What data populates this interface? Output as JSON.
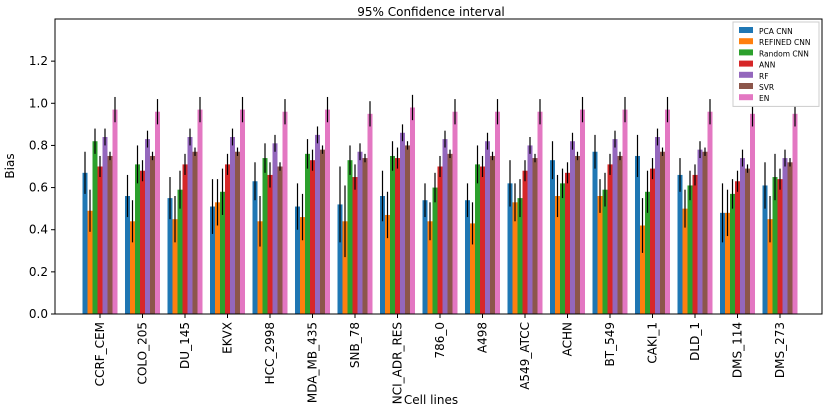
{
  "chart_data": {
    "type": "bar",
    "title": "95% Confidence interval",
    "xlabel": "Cell lines",
    "ylabel": "Bias",
    "ylim": [
      0.0,
      1.4
    ],
    "yticks": [
      "0.0",
      "0.2",
      "0.4",
      "0.6",
      "0.8",
      "1.0",
      "1.2"
    ],
    "legend_position": "top-right",
    "categories": [
      "CCRF_CEM",
      "COLO_205",
      "DU_145",
      "EKVX",
      "HCC_2998",
      "MDA_MB_435",
      "SNB_78",
      "NCI_ADR_RES",
      "786_0",
      "A498",
      "A549_ATCC",
      "ACHN",
      "BT_549",
      "CAKI_1",
      "DLD_1",
      "DMS_114",
      "DMS_273"
    ],
    "series": [
      {
        "name": "PCA CNN",
        "color": "#1f77b4",
        "values": [
          0.67,
          0.56,
          0.55,
          0.51,
          0.63,
          0.51,
          0.52,
          0.56,
          0.54,
          0.54,
          0.62,
          0.73,
          0.77,
          0.75,
          0.66,
          0.48,
          0.61
        ],
        "errors": [
          0.1,
          0.1,
          0.1,
          0.13,
          0.09,
          0.11,
          0.18,
          0.12,
          0.08,
          0.08,
          0.11,
          0.09,
          0.08,
          0.1,
          0.08,
          0.14,
          0.11
        ]
      },
      {
        "name": "REFINED CNN",
        "color": "#ff7f0e",
        "values": [
          0.49,
          0.44,
          0.45,
          0.53,
          0.44,
          0.46,
          0.44,
          0.47,
          0.44,
          0.43,
          0.53,
          0.56,
          0.56,
          0.42,
          0.5,
          0.48,
          0.45
        ],
        "errors": [
          0.1,
          0.1,
          0.11,
          0.11,
          0.12,
          0.11,
          0.17,
          0.11,
          0.09,
          0.1,
          0.09,
          0.1,
          0.08,
          0.13,
          0.09,
          0.11,
          0.11
        ]
      },
      {
        "name": "Random CNN",
        "color": "#2ca02c",
        "values": [
          0.82,
          0.71,
          0.59,
          0.58,
          0.74,
          0.76,
          0.73,
          0.75,
          0.6,
          0.71,
          0.55,
          0.62,
          0.59,
          0.58,
          0.61,
          0.57,
          0.65
        ],
        "errors": [
          0.06,
          0.09,
          0.09,
          0.11,
          0.07,
          0.07,
          0.07,
          0.07,
          0.07,
          0.09,
          0.09,
          0.07,
          0.08,
          0.1,
          0.07,
          0.07,
          0.11
        ]
      },
      {
        "name": "ANN",
        "color": "#d62728",
        "values": [
          0.7,
          0.68,
          0.71,
          0.71,
          0.66,
          0.73,
          0.65,
          0.74,
          0.7,
          0.7,
          0.68,
          0.67,
          0.71,
          0.69,
          0.66,
          0.63,
          0.64
        ],
        "errors": [
          0.05,
          0.05,
          0.05,
          0.05,
          0.06,
          0.05,
          0.06,
          0.05,
          0.05,
          0.05,
          0.05,
          0.05,
          0.05,
          0.05,
          0.05,
          0.05,
          0.05
        ]
      },
      {
        "name": "RF",
        "color": "#9467bd",
        "values": [
          0.84,
          0.83,
          0.84,
          0.84,
          0.81,
          0.85,
          0.77,
          0.86,
          0.83,
          0.82,
          0.8,
          0.82,
          0.83,
          0.84,
          0.78,
          0.74,
          0.74
        ],
        "errors": [
          0.04,
          0.04,
          0.04,
          0.04,
          0.04,
          0.04,
          0.04,
          0.04,
          0.04,
          0.04,
          0.04,
          0.04,
          0.04,
          0.04,
          0.04,
          0.04,
          0.04
        ]
      },
      {
        "name": "SVR",
        "color": "#8c564b",
        "values": [
          0.75,
          0.75,
          0.77,
          0.77,
          0.7,
          0.78,
          0.74,
          0.8,
          0.76,
          0.75,
          0.74,
          0.75,
          0.75,
          0.77,
          0.77,
          0.69,
          0.72
        ],
        "errors": [
          0.02,
          0.02,
          0.02,
          0.02,
          0.02,
          0.02,
          0.02,
          0.02,
          0.02,
          0.02,
          0.02,
          0.02,
          0.02,
          0.02,
          0.02,
          0.02,
          0.02
        ]
      },
      {
        "name": "EN",
        "color": "#e377c2",
        "values": [
          0.97,
          0.96,
          0.97,
          0.97,
          0.96,
          0.97,
          0.95,
          0.98,
          0.96,
          0.96,
          0.96,
          0.97,
          0.97,
          0.97,
          0.96,
          0.95,
          0.95
        ],
        "errors": [
          0.06,
          0.06,
          0.06,
          0.06,
          0.06,
          0.06,
          0.06,
          0.06,
          0.06,
          0.06,
          0.06,
          0.06,
          0.06,
          0.06,
          0.06,
          0.06,
          0.06
        ]
      }
    ]
  }
}
